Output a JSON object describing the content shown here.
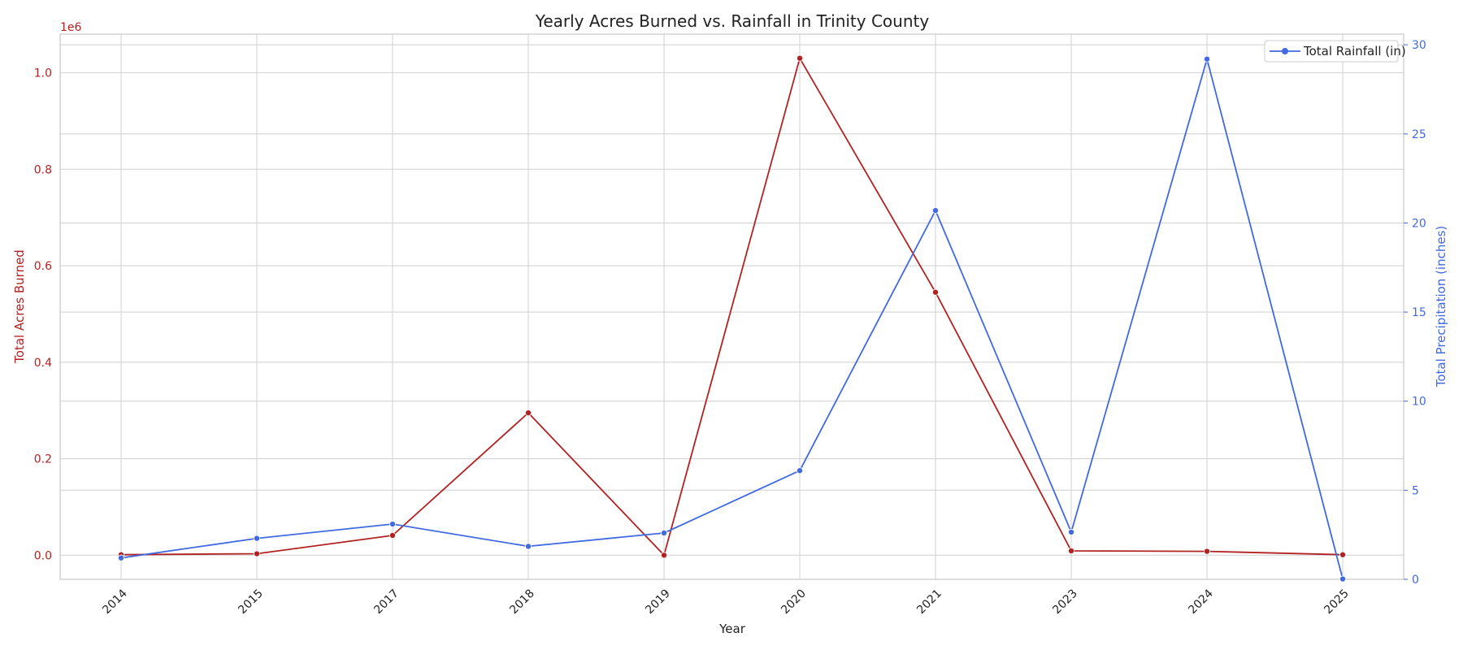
{
  "chart_data": {
    "type": "line",
    "title": "Yearly Acres Burned vs. Rainfall in Trinity County",
    "xlabel": "Year",
    "categories": [
      "2014",
      "2015",
      "2017",
      "2018",
      "2019",
      "2020",
      "2021",
      "2023",
      "2024",
      "2025"
    ],
    "y_left": {
      "label": "Total Acres Burned",
      "offset_text": "1e6",
      "ticks": [
        "0.0",
        "0.2",
        "0.4",
        "0.6",
        "0.8",
        "1.0"
      ],
      "tick_values": [
        0,
        0.2,
        0.4,
        0.6,
        0.8,
        1.0
      ],
      "range": [
        -0.05,
        1.08
      ],
      "color": "#b22222"
    },
    "y_right": {
      "label": "Total Precipitation (inches)",
      "ticks": [
        "0",
        "5",
        "10",
        "15",
        "20",
        "25",
        "30"
      ],
      "tick_values": [
        0,
        5,
        10,
        15,
        20,
        25,
        30
      ],
      "range": [
        0,
        30.6
      ],
      "color": "#4169e1"
    },
    "series": [
      {
        "axis": "left",
        "color": "#b22222",
        "values": [
          0.001,
          0.003,
          0.041,
          0.295,
          0.0,
          1.03,
          0.545,
          0.009,
          0.008,
          0.001
        ]
      },
      {
        "name": "Total Rainfall (in)",
        "axis": "right",
        "color": "#4169e1",
        "values": [
          1.2,
          2.3,
          3.1,
          1.85,
          2.6,
          6.1,
          20.7,
          2.65,
          29.2,
          0.02
        ]
      }
    ],
    "grid": true,
    "legend": "top-right"
  }
}
